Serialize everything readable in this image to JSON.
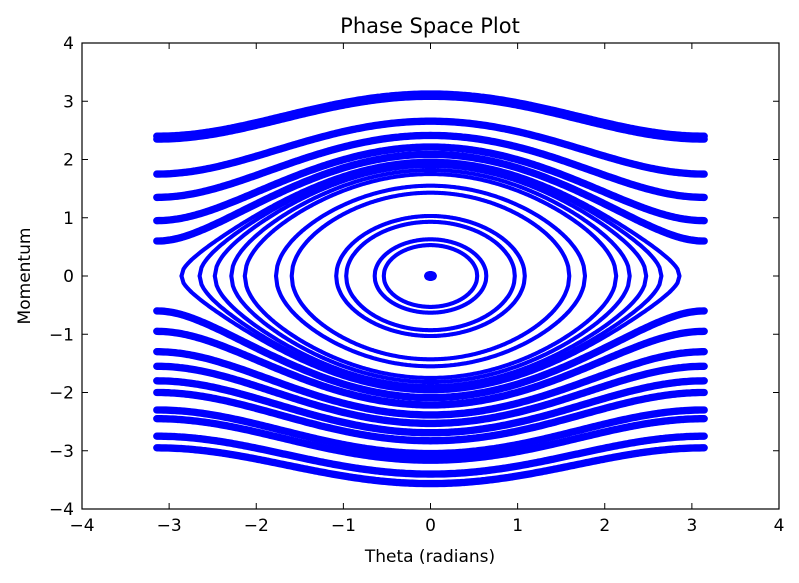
{
  "chart_data": {
    "type": "scatter",
    "title": "Phase Space Plot",
    "xlabel": "Theta (radians)",
    "ylabel": "Momentum",
    "xlim": [
      -4,
      4
    ],
    "ylim": [
      -4,
      4
    ],
    "xticks": [
      -4,
      -3,
      -2,
      -1,
      0,
      1,
      2,
      3,
      4
    ],
    "yticks": [
      -4,
      -3,
      -2,
      -1,
      0,
      1,
      2,
      3,
      4
    ],
    "xtick_labels": [
      "−4",
      "−3",
      "−2",
      "−1",
      "0",
      "1",
      "2",
      "3",
      "4"
    ],
    "ytick_labels": [
      "−4",
      "−3",
      "−2",
      "−1",
      "0",
      "1",
      "2",
      "3",
      "4"
    ],
    "grid": false,
    "marker_color": "#0000ff",
    "series": [
      {
        "kind": "pendulum-phase-trajectories",
        "theta_range": [
          -3.14159,
          3.14159
        ],
        "libration_peak_momenta": [
          0.05,
          0.53,
          0.63,
          0.93,
          1.03,
          1.43,
          1.55,
          1.75,
          1.82,
          1.89,
          1.94,
          1.98
        ],
        "rotation_min_momenta": [
          0.6,
          0.95,
          1.35,
          1.75,
          2.35,
          2.4,
          -0.6,
          -0.95,
          -1.3,
          -1.55,
          -1.8,
          -2.0,
          -2.3,
          -2.45,
          -2.75,
          -2.95
        ],
        "band_width": 0.07
      }
    ]
  }
}
